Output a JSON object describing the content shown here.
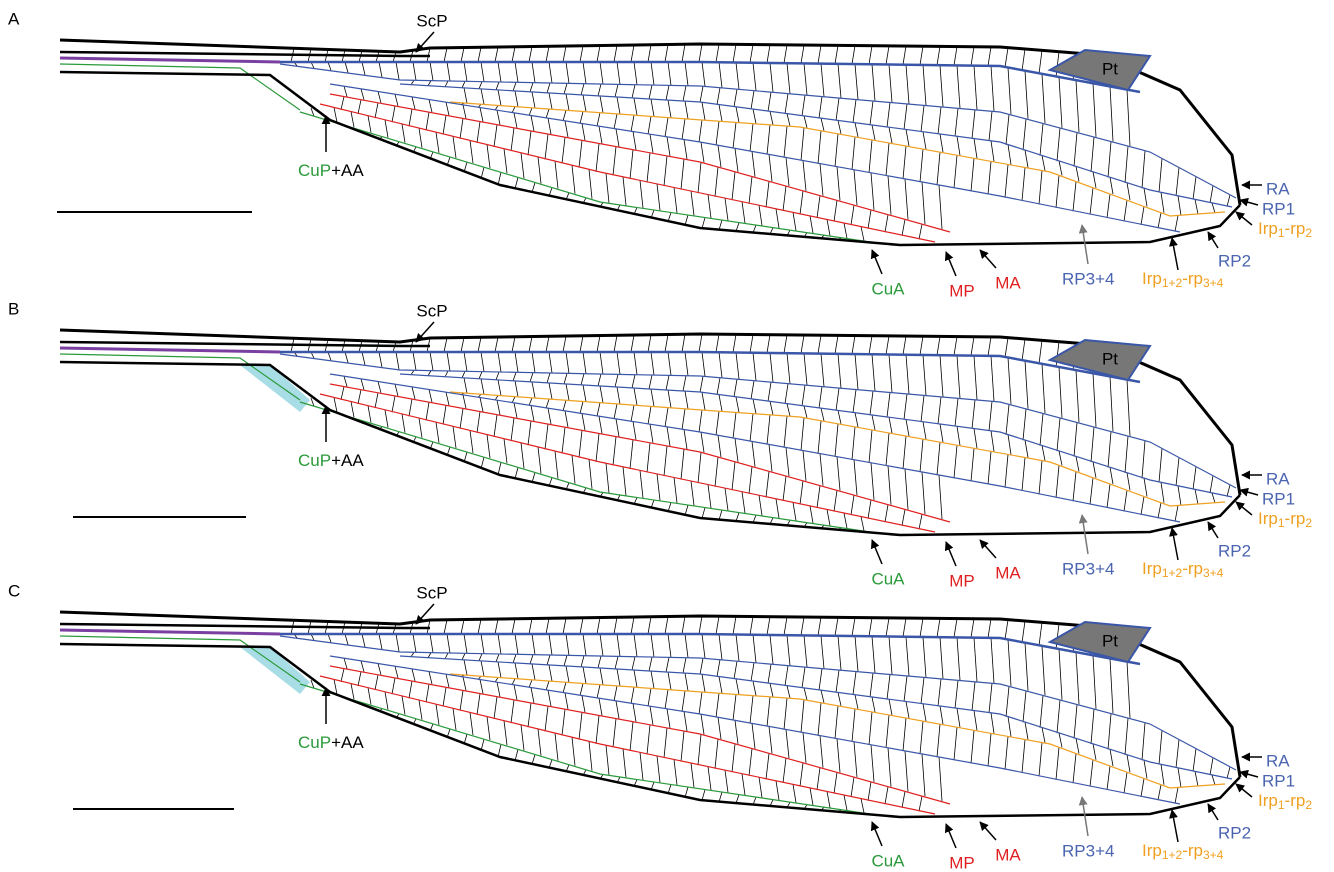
{
  "panels": [
    {
      "letter": "A",
      "labels": {
        "scp": "ScP",
        "pt": "Pt",
        "cup": "CuP",
        "aa": "+AA",
        "ra": "RA",
        "rp1": "RP1",
        "irp12": [
          "Irp",
          "1",
          "-rp",
          "2"
        ],
        "rp2": "RP2",
        "irp1234": [
          "Irp",
          "1+2",
          "-rp",
          "3+4"
        ],
        "rp34": "RP3+4",
        "ma": "MA",
        "mp": "MP",
        "cua": "CuA"
      }
    },
    {
      "letter": "B",
      "labels": {
        "scp": "ScP",
        "pt": "Pt",
        "cup": "CuP",
        "aa": "+AA",
        "ra": "RA",
        "rp1": "RP1",
        "irp12": [
          "Irp",
          "1",
          "-rp",
          "2"
        ],
        "rp2": "RP2",
        "irp1234": [
          "Irp",
          "1+2",
          "-rp",
          "3+4"
        ],
        "rp34": "RP3+4",
        "ma": "MA",
        "mp": "MP",
        "cua": "CuA"
      }
    },
    {
      "letter": "C",
      "labels": {
        "scp": "ScP",
        "pt": "Pt",
        "cup": "CuP",
        "aa": "+AA",
        "ra": "RA",
        "rp1": "RP1",
        "irp12": [
          "Irp",
          "1",
          "-rp",
          "2"
        ],
        "rp2": "RP2",
        "irp1234": [
          "Irp",
          "1+2",
          "-rp",
          "3+4"
        ],
        "rp34": "RP3+4",
        "ma": "MA",
        "mp": "MP",
        "cua": "CuA"
      }
    }
  ]
}
